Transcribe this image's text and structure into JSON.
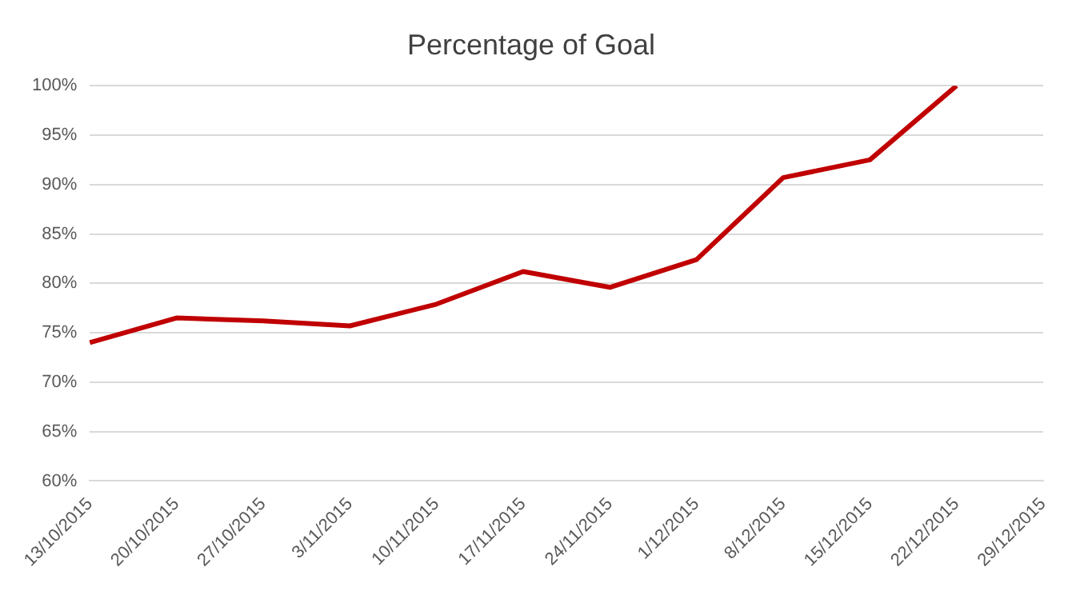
{
  "chart_data": {
    "type": "line",
    "title": "Percentage of Goal",
    "categories": [
      "13/10/2015",
      "20/10/2015",
      "27/10/2015",
      "3/11/2015",
      "10/11/2015",
      "17/11/2015",
      "24/11/2015",
      "1/12/2015",
      "8/12/2015",
      "15/12/2015",
      "22/12/2015",
      "29/12/2015"
    ],
    "series": [
      {
        "color": "#c00000",
        "values": [
          74,
          76.5,
          76.2,
          75.7,
          77.9,
          81.2,
          79.6,
          82.4,
          90.7,
          92.5,
          100,
          null
        ]
      }
    ],
    "ylim": [
      60,
      100
    ],
    "yticks": [
      {
        "value": 60,
        "label": "60%"
      },
      {
        "value": 65,
        "label": "65%"
      },
      {
        "value": 70,
        "label": "70%"
      },
      {
        "value": 75,
        "label": "75%"
      },
      {
        "value": 80,
        "label": "80%"
      },
      {
        "value": 85,
        "label": "85%"
      },
      {
        "value": 90,
        "label": "90%"
      },
      {
        "value": 95,
        "label": "95%"
      },
      {
        "value": 100,
        "label": "100%"
      }
    ],
    "grid": "y",
    "legend": false,
    "marker": "none",
    "line_style": "solid"
  }
}
